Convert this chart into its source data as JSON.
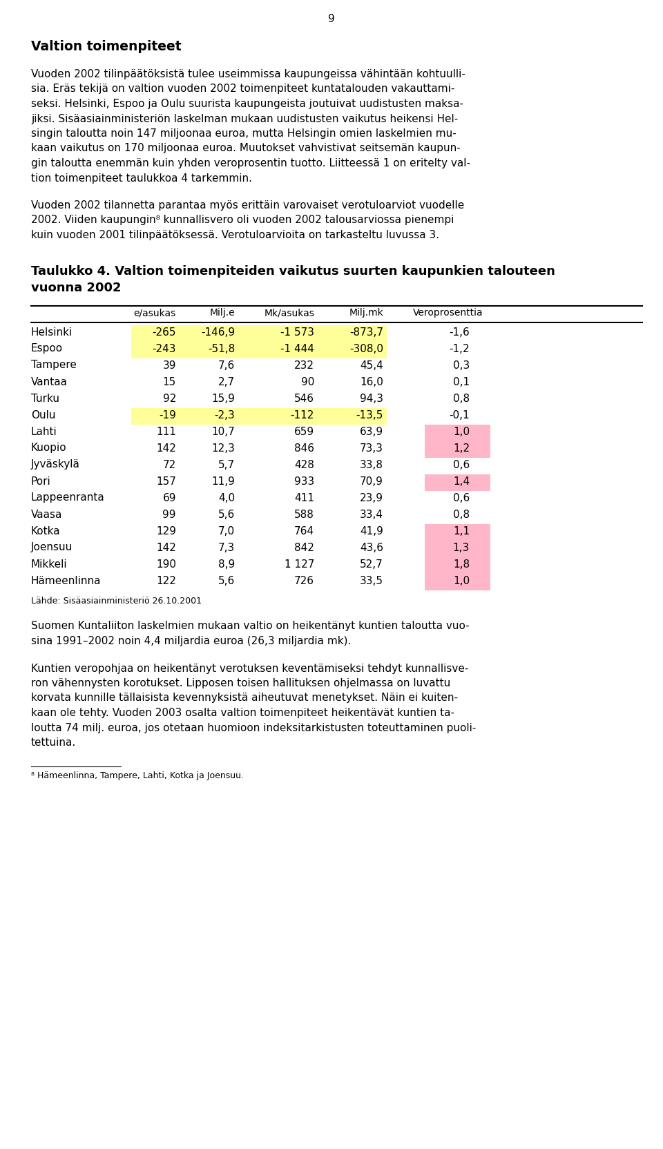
{
  "page_number": "9",
  "title1": "Valtion toimenpiteet",
  "para1_lines": [
    "Vuoden 2002 tilinpäätöksistä tulee useimmissa kaupungeissa vähintään kohtuulli-",
    "sia. Eräs tekijä on valtion vuoden 2002 toimenpiteet kuntatalouden vakauttami-",
    "seksi. Helsinki, Espoo ja Oulu suurista kaupungeista joutuivat uudistusten maksa-",
    "jiksi. Sisäasiainministeriön laskelman mukaan uudistusten vaikutus heikensi Hel-",
    "singin taloutta noin 147 miljoonaa euroa, mutta Helsingin omien laskelmien mu-",
    "kaan vaikutus on 170 miljoonaa euroa. Muutokset vahvistivat seitsemän kaupun-",
    "gin taloutta enemmän kuin yhden veroprosentin tuotto. Liitteessä 1 on eritelty val-",
    "tion toimenpiteet taulukkoa 4 tarkemmin."
  ],
  "para2_lines": [
    "Vuoden 2002 tilannetta parantaa myös erittäin varovaiset verotuloarviot vuodelle",
    "2002. Viiden kaupungin⁸ kunnallisvero oli vuoden 2002 talousarviossa pienempi",
    "kuin vuoden 2001 tilinpäätöksessä. Verotuloarvioita on tarkasteltu luvussa 3."
  ],
  "table_title_lines": [
    "Taulukko 4. Valtion toimenpiteiden vaikutus suurten kaupunkien talouteen",
    "vuonna 2002"
  ],
  "col_headers": [
    "e/asukas",
    "Milj.e",
    "Mk/asukas",
    "Milj.mk",
    "Veroprosenttia"
  ],
  "rows": [
    [
      "Helsinki",
      "-265",
      "-146,9",
      "-1 573",
      "-873,7",
      "-1,6"
    ],
    [
      "Espoo",
      "-243",
      "-51,8",
      "-1 444",
      "-308,0",
      "-1,2"
    ],
    [
      "Tampere",
      "39",
      "7,6",
      "232",
      "45,4",
      "0,3"
    ],
    [
      "Vantaa",
      "15",
      "2,7",
      "90",
      "16,0",
      "0,1"
    ],
    [
      "Turku",
      "92",
      "15,9",
      "546",
      "94,3",
      "0,8"
    ],
    [
      "Oulu",
      "-19",
      "-2,3",
      "-112",
      "-13,5",
      "-0,1"
    ],
    [
      "Lahti",
      "111",
      "10,7",
      "659",
      "63,9",
      "1,0"
    ],
    [
      "Kuopio",
      "142",
      "12,3",
      "846",
      "73,3",
      "1,2"
    ],
    [
      "Jyväskylä",
      "72",
      "5,7",
      "428",
      "33,8",
      "0,6"
    ],
    [
      "Pori",
      "157",
      "11,9",
      "933",
      "70,9",
      "1,4"
    ],
    [
      "Lappeenranta",
      "69",
      "4,0",
      "411",
      "23,9",
      "0,6"
    ],
    [
      "Vaasa",
      "99",
      "5,6",
      "588",
      "33,4",
      "0,8"
    ],
    [
      "Kotka",
      "129",
      "7,0",
      "764",
      "41,9",
      "1,1"
    ],
    [
      "Joensuu",
      "142",
      "7,3",
      "842",
      "43,6",
      "1,3"
    ],
    [
      "Mikkeli",
      "190",
      "8,9",
      "1 127",
      "52,7",
      "1,8"
    ],
    [
      "Hämeenlinna",
      "122",
      "5,6",
      "726",
      "33,5",
      "1,0"
    ]
  ],
  "yellow_rows": [
    0,
    1,
    5
  ],
  "pink_rows": [
    6,
    7,
    9,
    12,
    13,
    14,
    15
  ],
  "source_note": "Lähde: Sisäasiainministeriö 26.10.2001",
  "para3_lines": [
    "Suomen Kuntaliiton laskelmien mukaan valtio on heikentänyt kuntien taloutta vuo-",
    "sina 1991–2002 noin 4,4 miljardia euroa (26,3 miljardia mk)."
  ],
  "para4_lines": [
    "Kuntien veropohjaa on heikentänyt verotuksen keventämiseksi tehdyt kunnallisve-",
    "ron vähennysten korotukset. Lipposen toisen hallituksen ohjelmassa on luvattu",
    "korvata kunnille tällaisista kevennyksistä aiheutuvat menetykset. Näin ei kuiten-",
    "kaan ole tehty. Vuoden 2003 osalta valtion toimenpiteet heikentävät kuntien ta-",
    "loutta 74 milj. euroa, jos otetaan huomioon indeksitarkistusten toteuttaminen puoli-",
    "tettuina."
  ],
  "footnote": "⁸ Hämeenlinna, Tampere, Lahti, Kotka ja Joensuu.",
  "bg_color": "#ffffff",
  "text_color": "#000000",
  "yellow_color": "#ffff99",
  "pink_color": "#ffb6c8"
}
